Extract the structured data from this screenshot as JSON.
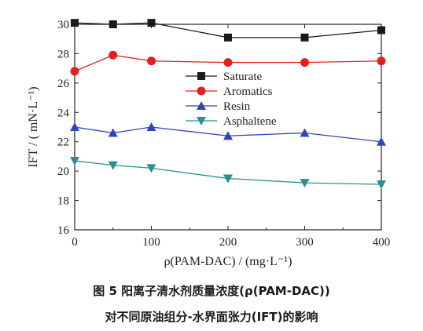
{
  "chart_data": {
    "type": "line",
    "x": [
      0,
      50,
      100,
      200,
      300,
      400
    ],
    "series": [
      {
        "name": "Saturate",
        "values": [
          30.1,
          30.0,
          30.1,
          29.1,
          29.1,
          29.6
        ],
        "color": "#1a1a1a",
        "marker": "square"
      },
      {
        "name": "Aromatics",
        "values": [
          26.8,
          27.9,
          27.5,
          27.4,
          27.4,
          27.5
        ],
        "color": "#e02020",
        "marker": "circle"
      },
      {
        "name": "Resin",
        "values": [
          23.0,
          22.6,
          23.0,
          22.4,
          22.6,
          22.0
        ],
        "color": "#3344bb",
        "marker": "triangle-up"
      },
      {
        "name": "Asphaltene",
        "values": [
          20.7,
          20.4,
          20.2,
          19.5,
          19.2,
          19.1
        ],
        "color": "#2a8f8f",
        "marker": "triangle-down"
      }
    ],
    "xlim": [
      0,
      400
    ],
    "ylim": [
      16,
      30
    ],
    "xticks": [
      "0",
      "100",
      "200",
      "300",
      "400"
    ],
    "yticks": [
      "16",
      "18",
      "20",
      "22",
      "24",
      "26",
      "28",
      "30"
    ],
    "xlabel": "ρ(PAM-DAC) / (mg·L⁻¹)",
    "ylabel": "IFT / ( mN·L⁻¹)",
    "legend_position": "upper-middle",
    "grid": false
  },
  "caption": {
    "line1": "图 5   阳离子清水剂质量浓度(ρ(PAM-DAC))",
    "line2": "对不同原油组分-水界面张力(IFT)的影响"
  }
}
